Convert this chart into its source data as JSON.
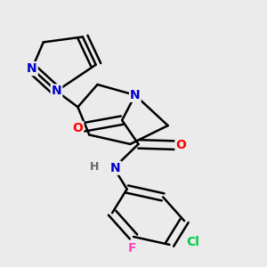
{
  "background_color": "#ebebeb",
  "colors": {
    "carbon": "#000000",
    "nitrogen_blue": "#0000cc",
    "oxygen_red": "#ff0000",
    "chlorine_green": "#00cc44",
    "fluorine_pink": "#ff44bb",
    "hydrogen": "#666666",
    "bond": "#000000",
    "background": "#ebebeb"
  },
  "layout": {
    "xlim": [
      0.0,
      1.0
    ],
    "ylim": [
      0.0,
      1.0
    ]
  }
}
